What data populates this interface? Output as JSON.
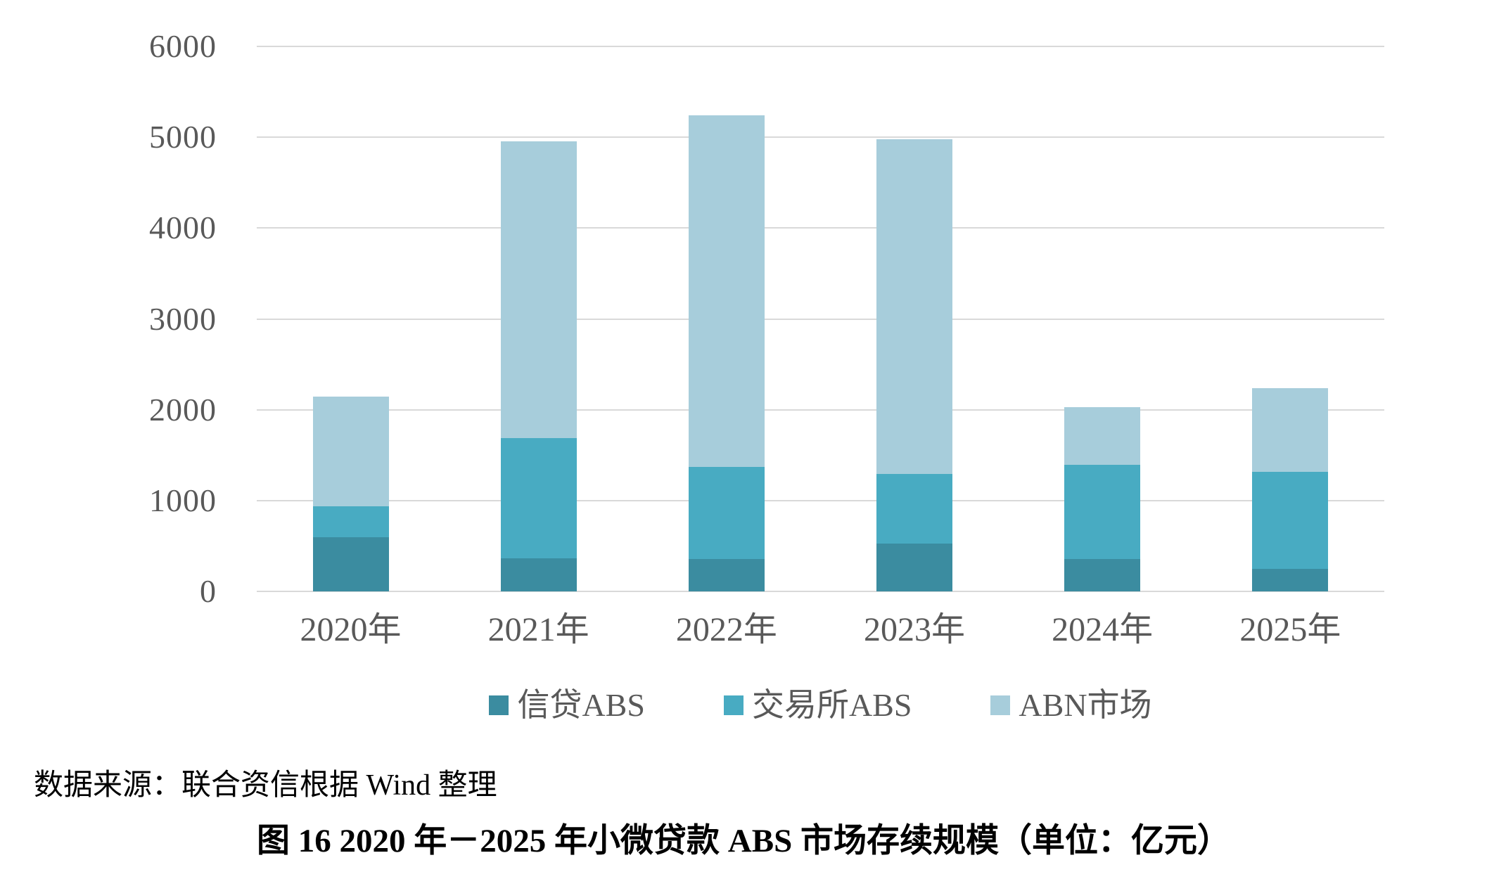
{
  "chart_data": {
    "type": "bar",
    "stacked": true,
    "title": "",
    "xlabel": "",
    "ylabel": "",
    "categories": [
      "2020年",
      "2021年",
      "2022年",
      "2023年",
      "2024年",
      "2025年"
    ],
    "series": [
      {
        "name": "信贷ABS",
        "color": "#3b8ca0",
        "values": [
          595,
          365,
          360,
          525,
          355,
          245
        ]
      },
      {
        "name": "交易所ABS",
        "color": "#48abc2",
        "values": [
          340,
          1320,
          1010,
          770,
          1040,
          1075
        ]
      },
      {
        "name": "ABN市场",
        "color": "#a7cddb",
        "values": [
          1210,
          3270,
          3875,
          3685,
          635,
          920
        ]
      }
    ],
    "totals": [
      2145,
      4955,
      5245,
      4980,
      2030,
      2240
    ],
    "ylim": [
      0,
      6000
    ],
    "yticks": [
      0,
      1000,
      2000,
      3000,
      4000,
      5000,
      6000
    ],
    "grid": "horizontal-only",
    "gridline_color": "#d9d9d9",
    "axis_text_color": "#595959",
    "legend_position": "bottom",
    "unit": "亿元"
  },
  "footer": {
    "source_note": "数据来源：联合资信根据 Wind 整理",
    "caption": "图 16  2020 年－2025 年小微贷款 ABS 市场存续规模（单位：亿元）"
  }
}
